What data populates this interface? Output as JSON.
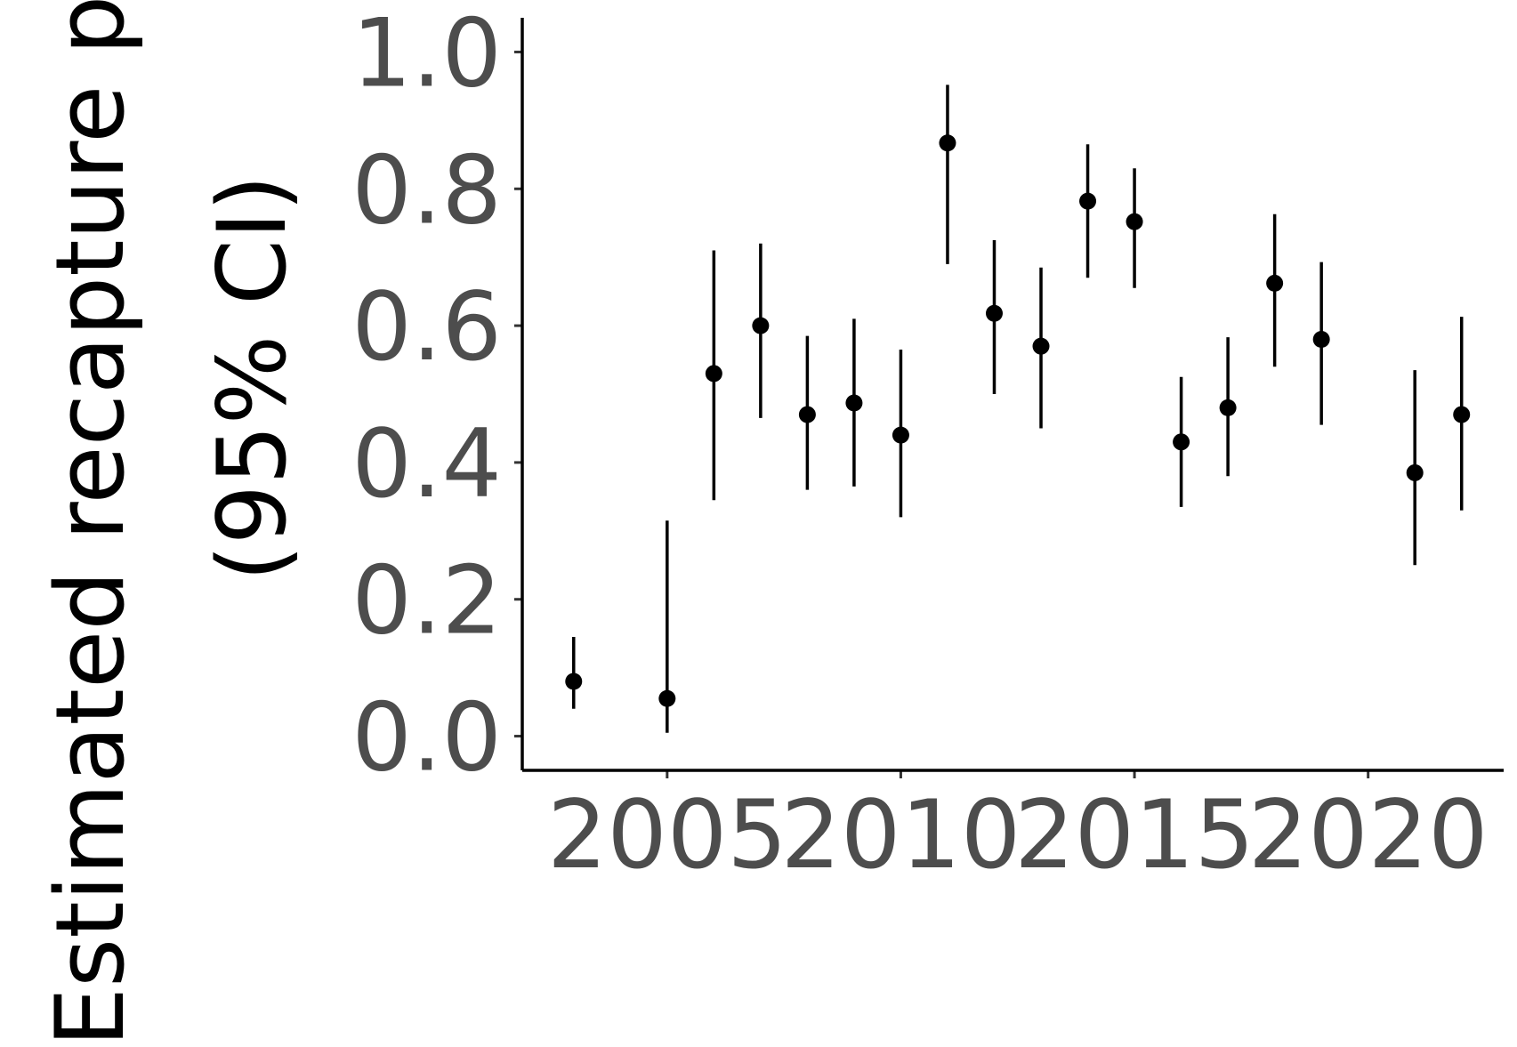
{
  "chart_data": {
    "type": "scatter",
    "ylabel_lines": [
      "Estimated recapture p",
      "(95% CI)"
    ],
    "xlabel": "",
    "xlim": [
      2001.9,
      2022.9
    ],
    "ylim": [
      -0.05,
      1.05
    ],
    "x_ticks": [
      2005,
      2010,
      2015,
      2020
    ],
    "y_ticks": [
      "0.0",
      "0.2",
      "0.4",
      "0.6",
      "0.8",
      "1.0"
    ],
    "grid": false,
    "legend": "none",
    "series": [
      {
        "points": [
          {
            "x": 2003,
            "y": 0.08,
            "lower": 0.04,
            "upper": 0.145
          },
          {
            "x": 2005,
            "y": 0.055,
            "lower": 0.005,
            "upper": 0.315
          },
          {
            "x": 2006,
            "y": 0.53,
            "lower": 0.345,
            "upper": 0.71
          },
          {
            "x": 2007,
            "y": 0.6,
            "lower": 0.465,
            "upper": 0.72
          },
          {
            "x": 2008,
            "y": 0.47,
            "lower": 0.36,
            "upper": 0.585
          },
          {
            "x": 2009,
            "y": 0.487,
            "lower": 0.365,
            "upper": 0.61
          },
          {
            "x": 2010,
            "y": 0.44,
            "lower": 0.32,
            "upper": 0.565
          },
          {
            "x": 2011,
            "y": 0.867,
            "lower": 0.69,
            "upper": 0.952
          },
          {
            "x": 2012,
            "y": 0.618,
            "lower": 0.5,
            "upper": 0.725
          },
          {
            "x": 2013,
            "y": 0.57,
            "lower": 0.45,
            "upper": 0.685
          },
          {
            "x": 2014,
            "y": 0.782,
            "lower": 0.67,
            "upper": 0.865
          },
          {
            "x": 2015,
            "y": 0.752,
            "lower": 0.655,
            "upper": 0.83
          },
          {
            "x": 2016,
            "y": 0.43,
            "lower": 0.335,
            "upper": 0.525
          },
          {
            "x": 2017,
            "y": 0.48,
            "lower": 0.38,
            "upper": 0.583
          },
          {
            "x": 2018,
            "y": 0.662,
            "lower": 0.54,
            "upper": 0.763
          },
          {
            "x": 2019,
            "y": 0.58,
            "lower": 0.455,
            "upper": 0.693
          },
          {
            "x": 2021,
            "y": 0.385,
            "lower": 0.25,
            "upper": 0.535
          },
          {
            "x": 2022,
            "y": 0.47,
            "lower": 0.33,
            "upper": 0.613
          }
        ]
      }
    ]
  }
}
